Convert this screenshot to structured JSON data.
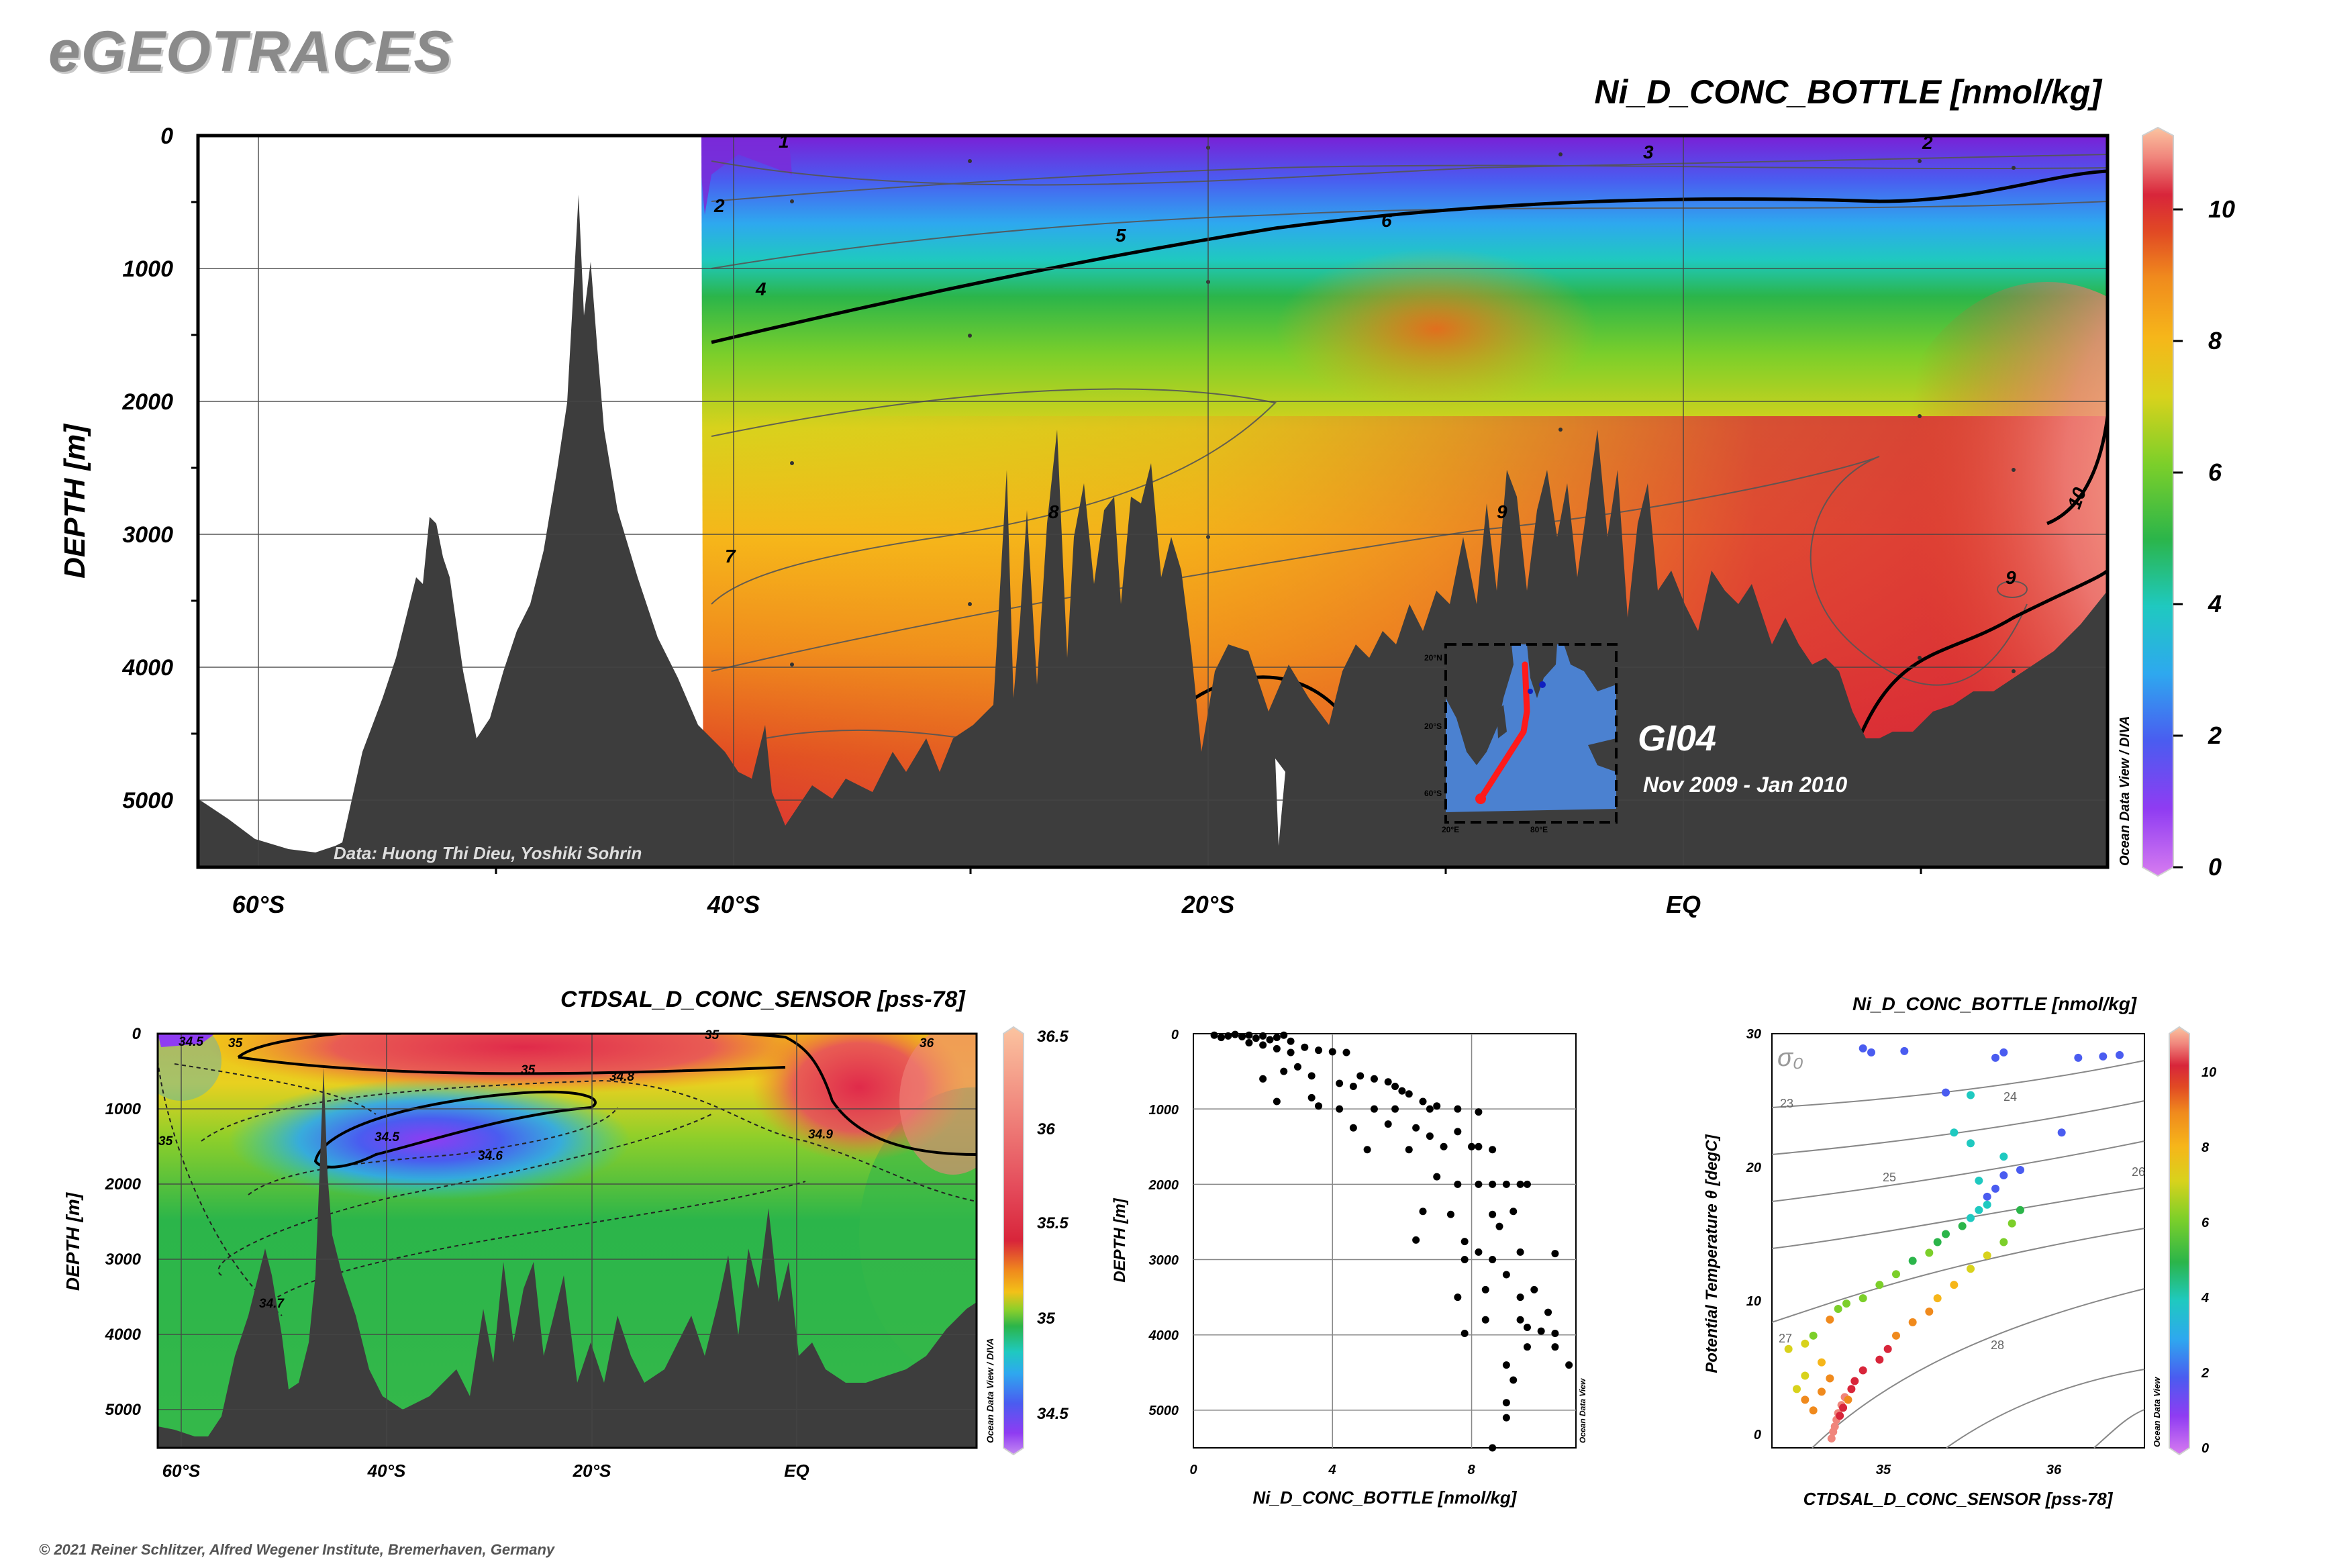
{
  "brand": "eGEOTRACES",
  "copyright": "© 2021 Reiner Schlitzer, Alfred Wegener Institute, Bremerhaven, Germany",
  "colors": {
    "land": "#3d3d3d",
    "palette": [
      "#d77cf0",
      "#8f3cf2",
      "#4a5cf0",
      "#2ea8ef",
      "#1fc9c0",
      "#2bb54a",
      "#7ccf2a",
      "#d8d21c",
      "#f6b61a",
      "#f08a1d",
      "#e14a24",
      "#d8253a",
      "#f0857c",
      "#fbc4a0"
    ]
  },
  "chart_data": [
    {
      "id": "main-section",
      "type": "heatmap",
      "title": "Ni_D_CONC_BOTTLE [nmol/kg]",
      "ylabel": "DEPTH [m]",
      "xlabel": "",
      "x_ticks": [
        "60°S",
        "40°S",
        "20°S",
        "EQ"
      ],
      "y_ticks": [
        "0",
        "1000",
        "2000",
        "3000",
        "4000",
        "5000"
      ],
      "colorbar": {
        "min": 0,
        "max": 11,
        "ticks": [
          "0",
          "2",
          "4",
          "6",
          "8",
          "10"
        ],
        "label": "Ocean Data View / DIVA"
      },
      "contour_labels": [
        "1",
        "2",
        "2",
        "3",
        "4",
        "5",
        "6",
        "7",
        "8",
        "9",
        "9",
        "10"
      ],
      "annotation_data": "Data: Huong Thi Dieu, Yoshiki Sohrin",
      "section_name": "GI04",
      "section_dates": "Nov 2009 - Jan 2010",
      "inset": {
        "lat_labels": [
          "20°N",
          "20°S",
          "60°S"
        ],
        "lon_labels": [
          "20°E",
          "80°E"
        ]
      }
    },
    {
      "id": "salinity-section",
      "type": "heatmap",
      "title": "CTDSAL_D_CONC_SENSOR [pss-78]",
      "ylabel": "DEPTH [m]",
      "x_ticks": [
        "60°S",
        "40°S",
        "20°S",
        "EQ"
      ],
      "y_ticks": [
        "0",
        "1000",
        "2000",
        "3000",
        "4000",
        "5000"
      ],
      "colorbar": {
        "min": 34.35,
        "max": 36.5,
        "ticks": [
          "34.5",
          "35",
          "35.5",
          "36",
          "36.5"
        ],
        "label": "Ocean Data View / DIVA"
      },
      "contour_labels": [
        "34.5",
        "34.5",
        "34.6",
        "34.7",
        "34.8",
        "34.9",
        "35",
        "35",
        "35",
        "35",
        "36"
      ]
    },
    {
      "id": "profile-scatter",
      "type": "scatter",
      "xlabel": "Ni_D_CONC_BOTTLE [nmol/kg]",
      "ylabel": "DEPTH [m]",
      "x_ticks": [
        "0",
        "4",
        "8"
      ],
      "y_ticks": [
        "0",
        "1000",
        "2000",
        "3000",
        "4000",
        "5000"
      ],
      "xlim": [
        0,
        11
      ],
      "ylim": [
        0,
        5500
      ],
      "watermark": "Ocean Data View",
      "points": [
        [
          0.6,
          20
        ],
        [
          0.8,
          50
        ],
        [
          1.0,
          30
        ],
        [
          1.2,
          10
        ],
        [
          1.4,
          40
        ],
        [
          1.6,
          20
        ],
        [
          1.8,
          60
        ],
        [
          2.0,
          30
        ],
        [
          2.2,
          80
        ],
        [
          2.4,
          50
        ],
        [
          2.6,
          20
        ],
        [
          2.8,
          100
        ],
        [
          1.6,
          120
        ],
        [
          2.0,
          150
        ],
        [
          2.4,
          200
        ],
        [
          2.8,
          250
        ],
        [
          3.2,
          180
        ],
        [
          3.6,
          220
        ],
        [
          4.0,
          240
        ],
        [
          4.4,
          250
        ],
        [
          2.0,
          600
        ],
        [
          2.6,
          500
        ],
        [
          3.0,
          440
        ],
        [
          3.4,
          560
        ],
        [
          2.4,
          900
        ],
        [
          3.4,
          850
        ],
        [
          3.6,
          960
        ],
        [
          4.2,
          660
        ],
        [
          4.6,
          700
        ],
        [
          4.8,
          560
        ],
        [
          5.2,
          600
        ],
        [
          5.6,
          640
        ],
        [
          5.8,
          700
        ],
        [
          6.0,
          760
        ],
        [
          6.2,
          800
        ],
        [
          6.6,
          900
        ],
        [
          7.0,
          960
        ],
        [
          4.2,
          1000
        ],
        [
          5.2,
          1000
        ],
        [
          5.8,
          1000
        ],
        [
          6.8,
          1000
        ],
        [
          7.6,
          1000
        ],
        [
          8.2,
          1040
        ],
        [
          4.6,
          1250
        ],
        [
          5.6,
          1200
        ],
        [
          6.4,
          1250
        ],
        [
          6.8,
          1360
        ],
        [
          7.6,
          1300
        ],
        [
          5.0,
          1540
        ],
        [
          6.2,
          1540
        ],
        [
          7.2,
          1500
        ],
        [
          8.0,
          1500
        ],
        [
          8.2,
          1500
        ],
        [
          8.6,
          1540
        ],
        [
          7.0,
          1900
        ],
        [
          7.6,
          2000
        ],
        [
          8.2,
          2000
        ],
        [
          8.6,
          2000
        ],
        [
          9.0,
          2000
        ],
        [
          9.4,
          2000
        ],
        [
          9.6,
          2000
        ],
        [
          6.6,
          2360
        ],
        [
          7.4,
          2400
        ],
        [
          8.6,
          2400
        ],
        [
          9.2,
          2360
        ],
        [
          8.8,
          2560
        ],
        [
          6.4,
          2740
        ],
        [
          7.8,
          2760
        ],
        [
          8.2,
          2900
        ],
        [
          9.4,
          2900
        ],
        [
          10.4,
          2920
        ],
        [
          7.8,
          3000
        ],
        [
          8.6,
          3000
        ],
        [
          9.0,
          3200
        ],
        [
          8.4,
          3400
        ],
        [
          9.8,
          3400
        ],
        [
          7.6,
          3500
        ],
        [
          9.4,
          3500
        ],
        [
          8.4,
          3800
        ],
        [
          9.4,
          3800
        ],
        [
          10.2,
          3700
        ],
        [
          7.8,
          3980
        ],
        [
          9.6,
          3900
        ],
        [
          10.0,
          3950
        ],
        [
          10.4,
          3980
        ],
        [
          9.6,
          4160
        ],
        [
          10.4,
          4160
        ],
        [
          10.8,
          4400
        ],
        [
          9.0,
          4400
        ],
        [
          9.2,
          4600
        ],
        [
          9.0,
          4900
        ],
        [
          9.0,
          5100
        ],
        [
          8.6,
          5500
        ]
      ]
    },
    {
      "id": "ts-diagram",
      "type": "scatter",
      "title": "Ni_D_CONC_BOTTLE [nmol/kg]",
      "xlabel": "CTDSAL_D_CONC_SENSOR [pss-78]",
      "ylabel": "Potential Temperature θ [degC]",
      "x_ticks": [
        "35",
        "36"
      ],
      "y_ticks": [
        "0",
        "10",
        "20",
        "30"
      ],
      "xlim": [
        34.3,
        36.55
      ],
      "ylim": [
        -1,
        30
      ],
      "sigma_label": "σ₀",
      "isopycnal_labels": [
        "23",
        "24",
        "25",
        "26",
        "27",
        "28"
      ],
      "colorbar": {
        "min": 0,
        "max": 11,
        "ticks": [
          "0",
          "2",
          "4",
          "6",
          "8",
          "10"
        ],
        "label": "Ocean Data View"
      },
      "points": [
        [
          34.4,
          6.4,
          6
        ],
        [
          34.45,
          3.4,
          6
        ],
        [
          34.5,
          4.4,
          6
        ],
        [
          34.5,
          6.8,
          6
        ],
        [
          34.55,
          7.4,
          5
        ],
        [
          34.65,
          8.6,
          8
        ],
        [
          34.7,
          9.4,
          5
        ],
        [
          34.75,
          9.8,
          5
        ],
        [
          34.85,
          10.2,
          5
        ],
        [
          34.95,
          11.2,
          5
        ],
        [
          35.05,
          12.0,
          5
        ],
        [
          35.15,
          13.0,
          4
        ],
        [
          35.25,
          13.6,
          5
        ],
        [
          35.3,
          14.4,
          4
        ],
        [
          35.35,
          15.0,
          4
        ],
        [
          35.45,
          15.6,
          4
        ],
        [
          35.5,
          16.2,
          3
        ],
        [
          35.55,
          16.8,
          3
        ],
        [
          35.6,
          17.2,
          3
        ],
        [
          35.6,
          17.8,
          2
        ],
        [
          35.65,
          18.4,
          2
        ],
        [
          35.55,
          19.0,
          3
        ],
        [
          35.7,
          19.4,
          2
        ],
        [
          35.8,
          19.8,
          2
        ],
        [
          35.7,
          20.8,
          3
        ],
        [
          35.5,
          21.8,
          3
        ],
        [
          35.4,
          22.6,
          3
        ],
        [
          35.35,
          25.6,
          2
        ],
        [
          35.5,
          25.4,
          3
        ],
        [
          35.65,
          28.2,
          2
        ],
        [
          35.7,
          28.6,
          2
        ],
        [
          35.1,
          28.7,
          2
        ],
        [
          34.85,
          28.9,
          2
        ],
        [
          34.9,
          28.6,
          2
        ],
        [
          36.05,
          22.6,
          2
        ],
        [
          36.15,
          28.2,
          2
        ],
        [
          36.3,
          28.3,
          2
        ],
        [
          36.4,
          28.4,
          2
        ],
        [
          35.8,
          16.8,
          4
        ],
        [
          35.75,
          15.8,
          5
        ],
        [
          35.7,
          14.4,
          5
        ],
        [
          35.6,
          13.4,
          6
        ],
        [
          35.5,
          12.4,
          6
        ],
        [
          35.4,
          11.2,
          7
        ],
        [
          35.3,
          10.2,
          7
        ],
        [
          35.25,
          9.2,
          8
        ],
        [
          35.15,
          8.4,
          8
        ],
        [
          35.05,
          7.4,
          8
        ],
        [
          35.0,
          6.4,
          9
        ],
        [
          34.95,
          5.6,
          9
        ],
        [
          34.85,
          4.8,
          9
        ],
        [
          34.8,
          4.0,
          9
        ],
        [
          34.78,
          3.4,
          9
        ],
        [
          34.74,
          2.8,
          10
        ],
        [
          34.72,
          2.2,
          10
        ],
        [
          34.7,
          1.6,
          10
        ],
        [
          34.69,
          1.1,
          10
        ],
        [
          34.68,
          0.6,
          10
        ],
        [
          34.67,
          0.2,
          10
        ],
        [
          34.66,
          -0.3,
          10
        ],
        [
          34.71,
          1.4,
          9
        ],
        [
          34.73,
          2.0,
          9
        ],
        [
          34.76,
          2.6,
          8
        ],
        [
          34.6,
          3.2,
          8
        ],
        [
          34.65,
          4.2,
          8
        ],
        [
          34.6,
          5.4,
          7
        ],
        [
          34.5,
          2.6,
          8
        ],
        [
          34.55,
          1.8,
          8
        ]
      ]
    }
  ]
}
